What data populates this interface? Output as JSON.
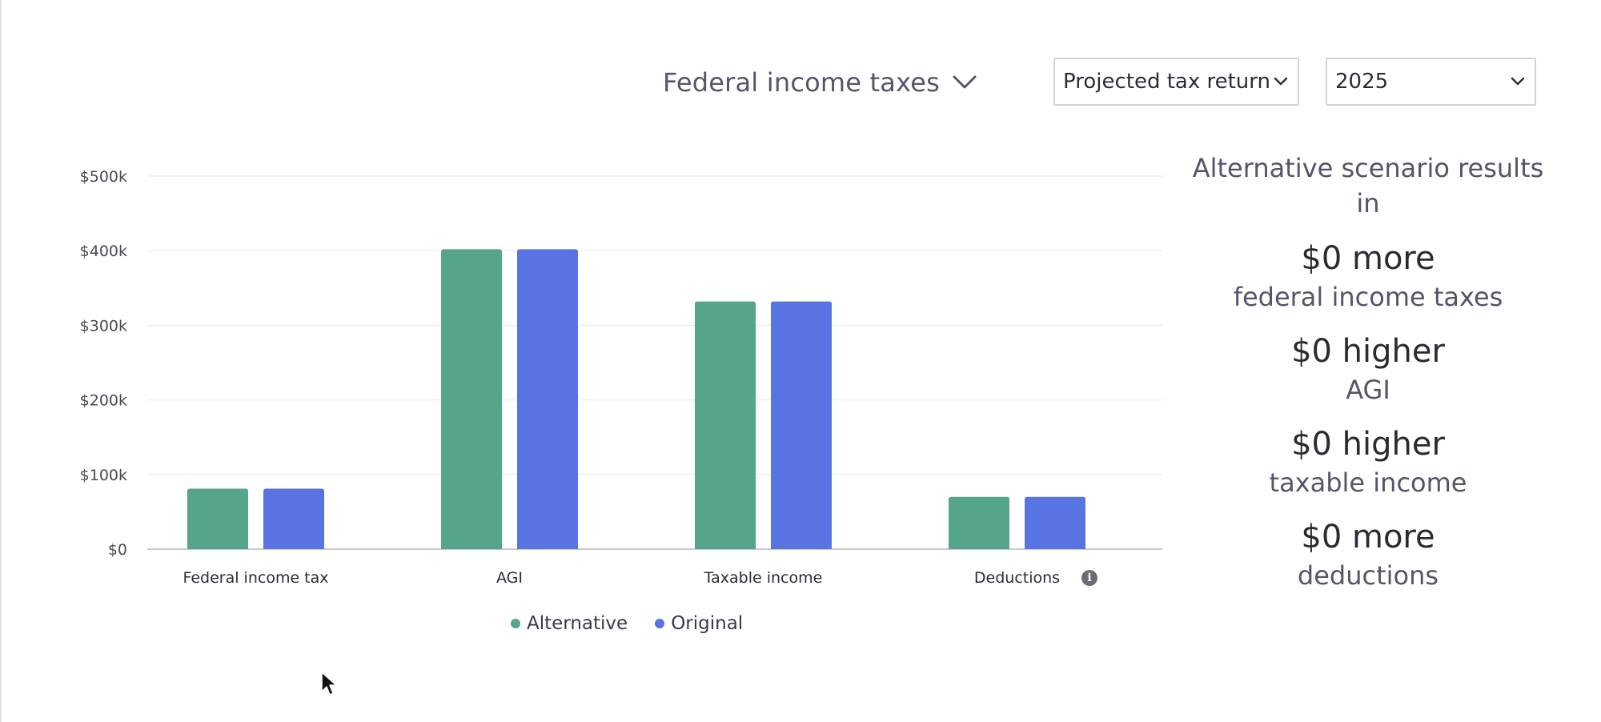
{
  "header": {
    "metric_label": "Federal income taxes",
    "return_select_value": "Projected tax return",
    "year_select_value": "2025"
  },
  "icons": {
    "metric_chevron": "chevron-down-icon",
    "select_chevron": "chevron-down-icon",
    "info": "info-icon",
    "cursor": "mouse-pointer-icon"
  },
  "chart_data": {
    "type": "bar",
    "categories": [
      "Federal income tax",
      "AGI",
      "Taxable income",
      "Deductions"
    ],
    "series": [
      {
        "name": "Alternative",
        "color": "#54a58a",
        "values": [
          81000,
          402000,
          332000,
          70000
        ]
      },
      {
        "name": "Original",
        "color": "#5873e2",
        "values": [
          81000,
          402000,
          332000,
          70000
        ]
      }
    ],
    "ylim": [
      0,
      500000
    ],
    "yticks": [
      {
        "value": 0,
        "label": "$0"
      },
      {
        "value": 100000,
        "label": "$100k"
      },
      {
        "value": 200000,
        "label": "$200k"
      },
      {
        "value": 300000,
        "label": "$300k"
      },
      {
        "value": 400000,
        "label": "$400k"
      },
      {
        "value": 500000,
        "label": "$500k"
      }
    ],
    "grid": true,
    "legend_position": "bottom-center"
  },
  "legend": {
    "alternative": "Alternative",
    "original": "Original"
  },
  "summary": {
    "heading": "Alternative scenario results in",
    "items": [
      {
        "amount": "$0 more",
        "what": "federal income taxes"
      },
      {
        "amount": "$0 higher",
        "what": "AGI"
      },
      {
        "amount": "$0 higher",
        "what": "taxable income"
      },
      {
        "amount": "$0 more",
        "what": "deductions"
      }
    ]
  }
}
